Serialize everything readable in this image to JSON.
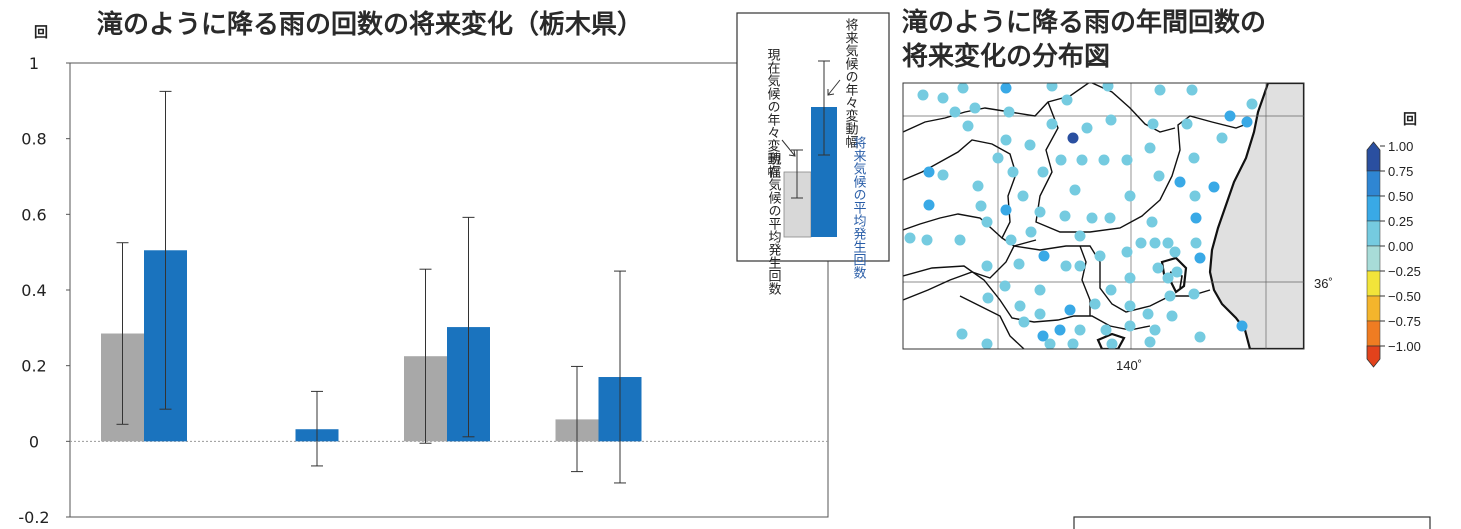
{
  "chart_data": [
    {
      "type": "bar",
      "title": "滝のように降る雨の回数の将来変化（栃木県）",
      "unit_label": "回",
      "ylim": [
        -0.2,
        1
      ],
      "yticks": [
        "1",
        "0.8",
        "0.6",
        "0.4",
        "0.2",
        "0",
        "-0.2"
      ],
      "ytick_values": [
        1,
        0.8,
        0.6,
        0.4,
        0.2,
        0,
        -0.2
      ],
      "groups": 5,
      "series": [
        {
          "values": [
            0.285,
            0.0,
            0.225,
            0.058,
            0.0
          ],
          "err_low": [
            0.045,
            0.0,
            -0.005,
            -0.08,
            0.0
          ],
          "err_high": [
            0.525,
            0.0,
            0.455,
            0.198,
            0.0
          ],
          "color": "#a8a8a8"
        },
        {
          "values": [
            0.505,
            0.032,
            0.302,
            0.17,
            0.0
          ],
          "err_low": [
            0.085,
            -0.065,
            0.012,
            -0.11,
            0.0
          ],
          "err_high": [
            0.925,
            0.132,
            0.592,
            0.45,
            0.0
          ],
          "color": "#1a73be"
        }
      ],
      "legend": {
        "current_range": "現在気候の年々変動幅",
        "future_range": "将来気候の年々変動幅",
        "current_mean": "現在気候の平均発生回数",
        "future_mean": "将来気候の平均発生回数"
      }
    },
    {
      "type": "scatter",
      "title_line1": "滝のように降る雨の年間回数の",
      "title_line2": "将来変化の分布図",
      "lon_label": "140˚",
      "lat_label": "36˚",
      "colorbar": {
        "unit": "回",
        "labels": [
          "1.00",
          "0.75",
          "0.50",
          "0.25",
          "0.00",
          "−0.25",
          "−0.50",
          "−0.75",
          "−1.00"
        ],
        "colors": [
          "#2a4fa0",
          "#2f86d3",
          "#39a9e6",
          "#75cbe0",
          "#a8dcd8",
          "#f2e43a",
          "#f4b52c",
          "#ef7c22",
          "#e2421c"
        ]
      },
      "stations": [
        [
          923,
          95,
          "#75cbe0"
        ],
        [
          943,
          98,
          "#75cbe0"
        ],
        [
          963,
          88,
          "#75cbe0"
        ],
        [
          1006,
          88,
          "#39a9e6"
        ],
        [
          1052,
          86,
          "#75cbe0"
        ],
        [
          1108,
          86,
          "#75cbe0"
        ],
        [
          1160,
          90,
          "#75cbe0"
        ],
        [
          1192,
          90,
          "#75cbe0"
        ],
        [
          1252,
          104,
          "#75cbe0"
        ],
        [
          955,
          112,
          "#75cbe0"
        ],
        [
          975,
          108,
          "#75cbe0"
        ],
        [
          1009,
          112,
          "#75cbe0"
        ],
        [
          1067,
          100,
          "#75cbe0"
        ],
        [
          1230,
          116,
          "#39a9e6"
        ],
        [
          1247,
          122,
          "#39a9e6"
        ],
        [
          968,
          126,
          "#75cbe0"
        ],
        [
          1006,
          140,
          "#75cbe0"
        ],
        [
          1073,
          138,
          "#2a4fa0"
        ],
        [
          1052,
          124,
          "#75cbe0"
        ],
        [
          1087,
          128,
          "#75cbe0"
        ],
        [
          1111,
          120,
          "#75cbe0"
        ],
        [
          1153,
          124,
          "#75cbe0"
        ],
        [
          1187,
          124,
          "#75cbe0"
        ],
        [
          1030,
          145,
          "#75cbe0"
        ],
        [
          1150,
          148,
          "#75cbe0"
        ],
        [
          1194,
          158,
          "#75cbe0"
        ],
        [
          1222,
          138,
          "#75cbe0"
        ],
        [
          998,
          158,
          "#75cbe0"
        ],
        [
          1061,
          160,
          "#75cbe0"
        ],
        [
          1082,
          160,
          "#75cbe0"
        ],
        [
          1104,
          160,
          "#75cbe0"
        ],
        [
          1127,
          160,
          "#75cbe0"
        ],
        [
          929,
          172,
          "#39a9e6"
        ],
        [
          943,
          175,
          "#75cbe0"
        ],
        [
          1013,
          172,
          "#75cbe0"
        ],
        [
          1043,
          172,
          "#75cbe0"
        ],
        [
          1180,
          182,
          "#39a9e6"
        ],
        [
          1214,
          187,
          "#39a9e6"
        ],
        [
          1159,
          176,
          "#75cbe0"
        ],
        [
          978,
          186,
          "#75cbe0"
        ],
        [
          1023,
          196,
          "#75cbe0"
        ],
        [
          1075,
          190,
          "#75cbe0"
        ],
        [
          1130,
          196,
          "#75cbe0"
        ],
        [
          1195,
          196,
          "#75cbe0"
        ],
        [
          929,
          205,
          "#39a9e6"
        ],
        [
          981,
          206,
          "#75cbe0"
        ],
        [
          1006,
          210,
          "#39a9e6"
        ],
        [
          1040,
          212,
          "#75cbe0"
        ],
        [
          1065,
          216,
          "#75cbe0"
        ],
        [
          1092,
          218,
          "#75cbe0"
        ],
        [
          1110,
          218,
          "#75cbe0"
        ],
        [
          1196,
          218,
          "#39a9e6"
        ],
        [
          1152,
          222,
          "#75cbe0"
        ],
        [
          987,
          222,
          "#75cbe0"
        ],
        [
          1031,
          232,
          "#75cbe0"
        ],
        [
          910,
          238,
          "#75cbe0"
        ],
        [
          927,
          240,
          "#75cbe0"
        ],
        [
          960,
          240,
          "#75cbe0"
        ],
        [
          1011,
          240,
          "#75cbe0"
        ],
        [
          1080,
          236,
          "#75cbe0"
        ],
        [
          1141,
          243,
          "#75cbe0"
        ],
        [
          1155,
          243,
          "#75cbe0"
        ],
        [
          1168,
          243,
          "#75cbe0"
        ],
        [
          1196,
          243,
          "#75cbe0"
        ],
        [
          1044,
          256,
          "#39a9e6"
        ],
        [
          1100,
          256,
          "#75cbe0"
        ],
        [
          1127,
          252,
          "#75cbe0"
        ],
        [
          1175,
          252,
          "#75cbe0"
        ],
        [
          1200,
          258,
          "#39a9e6"
        ],
        [
          1019,
          264,
          "#75cbe0"
        ],
        [
          987,
          266,
          "#75cbe0"
        ],
        [
          1066,
          266,
          "#75cbe0"
        ],
        [
          1080,
          266,
          "#75cbe0"
        ],
        [
          1158,
          268,
          "#75cbe0"
        ],
        [
          1177,
          272,
          "#75cbe0"
        ],
        [
          1130,
          278,
          "#75cbe0"
        ],
        [
          1168,
          278,
          "#75cbe0"
        ],
        [
          1005,
          286,
          "#75cbe0"
        ],
        [
          1040,
          290,
          "#75cbe0"
        ],
        [
          1111,
          290,
          "#75cbe0"
        ],
        [
          1170,
          296,
          "#75cbe0"
        ],
        [
          1194,
          294,
          "#75cbe0"
        ],
        [
          988,
          298,
          "#75cbe0"
        ],
        [
          1020,
          306,
          "#75cbe0"
        ],
        [
          1070,
          310,
          "#39a9e6"
        ],
        [
          1095,
          304,
          "#75cbe0"
        ],
        [
          1130,
          306,
          "#75cbe0"
        ],
        [
          1040,
          314,
          "#75cbe0"
        ],
        [
          1148,
          314,
          "#75cbe0"
        ],
        [
          1172,
          316,
          "#75cbe0"
        ],
        [
          1024,
          322,
          "#75cbe0"
        ],
        [
          1060,
          330,
          "#39a9e6"
        ],
        [
          1080,
          330,
          "#75cbe0"
        ],
        [
          1106,
          330,
          "#75cbe0"
        ],
        [
          1130,
          326,
          "#75cbe0"
        ],
        [
          1242,
          326,
          "#39a9e6"
        ],
        [
          1155,
          330,
          "#75cbe0"
        ],
        [
          962,
          334,
          "#75cbe0"
        ],
        [
          1043,
          336,
          "#39a9e6"
        ],
        [
          1200,
          337,
          "#75cbe0"
        ],
        [
          987,
          344,
          "#75cbe0"
        ],
        [
          1050,
          344,
          "#75cbe0"
        ],
        [
          1073,
          344,
          "#75cbe0"
        ],
        [
          1112,
          344,
          "#75cbe0"
        ],
        [
          1150,
          342,
          "#75cbe0"
        ]
      ]
    }
  ]
}
